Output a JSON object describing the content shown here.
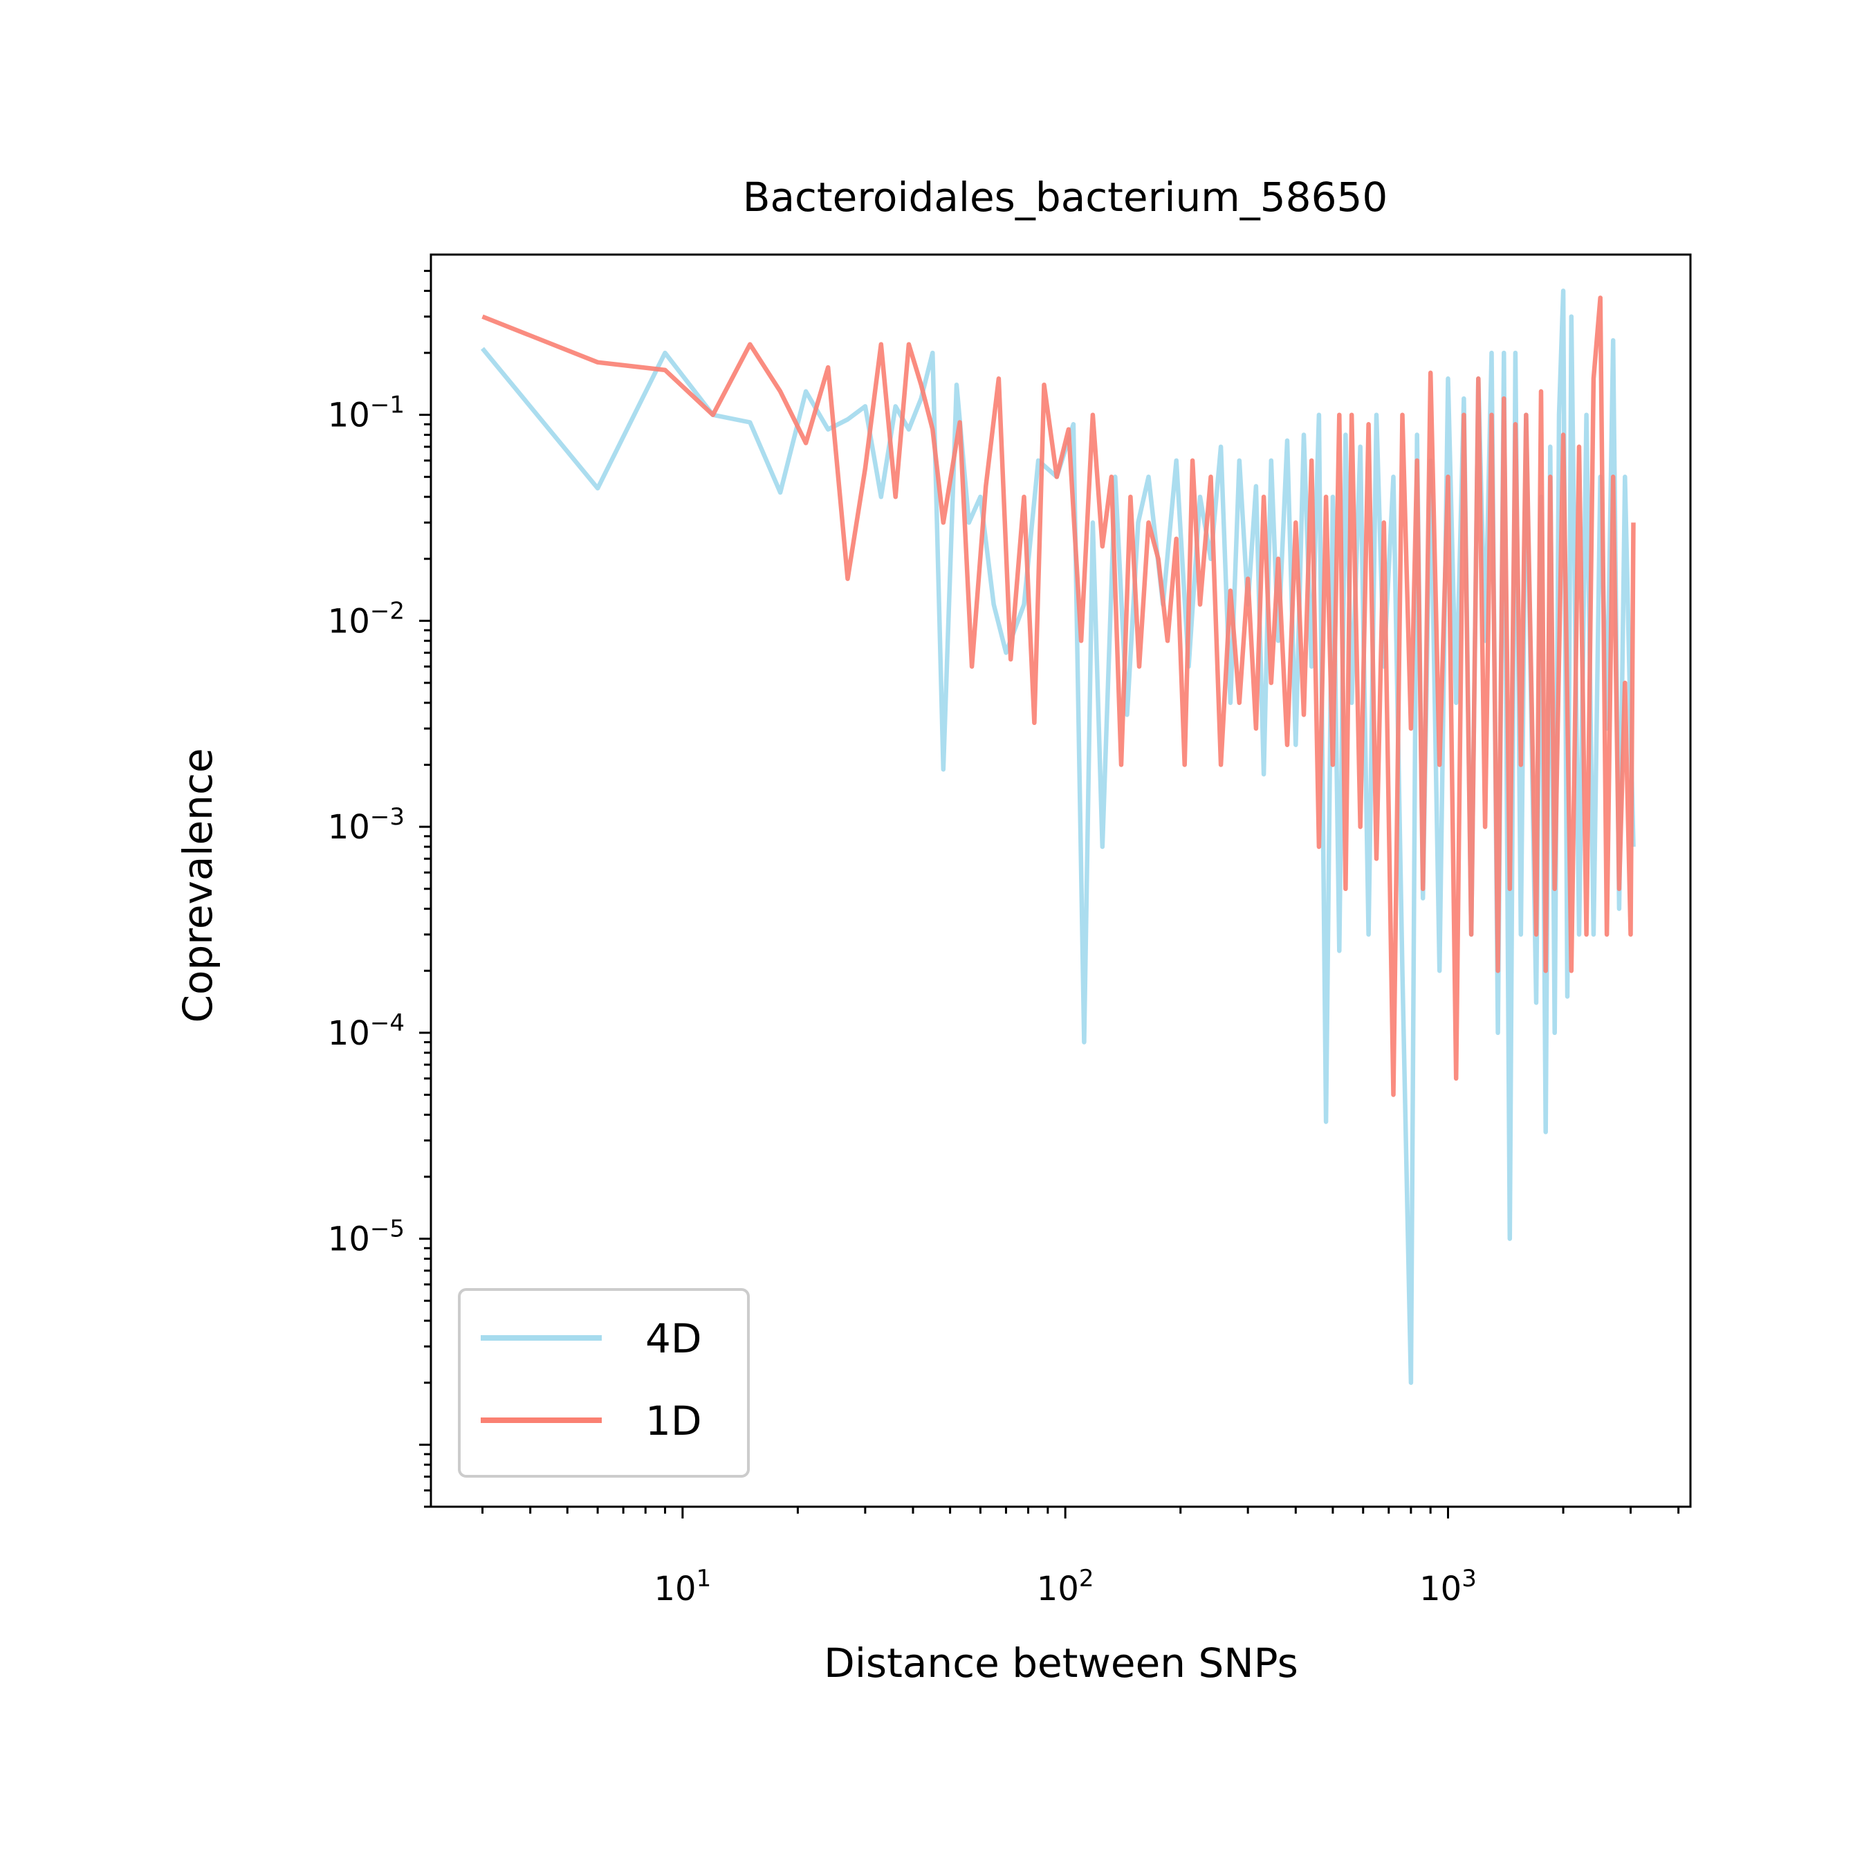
{
  "chart_data": {
    "type": "line",
    "title": "Bacteroidales_bacterium_58650",
    "xlabel": "Distance between SNPs",
    "ylabel": "Coprevalence",
    "xscale": "log",
    "yscale": "log",
    "xlim": [
      2.2,
      4300
    ],
    "ylim": [
      5e-07,
      0.6
    ],
    "grid": false,
    "legend_position": "lower-left",
    "x_ticks": [
      {
        "value": 10,
        "base": "10",
        "exp": "1"
      },
      {
        "value": 100,
        "base": "10",
        "exp": "2"
      },
      {
        "value": 1000,
        "base": "10",
        "exp": "3"
      }
    ],
    "y_ticks": [
      {
        "value": 1e-05,
        "base": "10",
        "exp": "−5"
      },
      {
        "value": 0.0001,
        "base": "10",
        "exp": "−4"
      },
      {
        "value": 0.001,
        "base": "10",
        "exp": "−3"
      },
      {
        "value": 0.01,
        "base": "10",
        "exp": "−2"
      },
      {
        "value": 0.1,
        "base": "10",
        "exp": "−1"
      }
    ],
    "series": [
      {
        "name": "4D",
        "color": "#a6dbee",
        "points": [
          [
            3,
            0.21
          ],
          [
            6,
            0.044
          ],
          [
            9,
            0.2
          ],
          [
            12,
            0.1
          ],
          [
            15,
            0.092
          ],
          [
            18,
            0.042
          ],
          [
            21,
            0.13
          ],
          [
            24,
            0.085
          ],
          [
            27,
            0.095
          ],
          [
            30,
            0.11
          ],
          [
            33,
            0.04
          ],
          [
            36,
            0.11
          ],
          [
            39,
            0.085
          ],
          [
            42,
            0.12
          ],
          [
            45,
            0.2
          ],
          [
            48,
            0.0019
          ],
          [
            52,
            0.14
          ],
          [
            56,
            0.03
          ],
          [
            60,
            0.04
          ],
          [
            65,
            0.012
          ],
          [
            70,
            0.007
          ],
          [
            78,
            0.012
          ],
          [
            85,
            0.06
          ],
          [
            95,
            0.05
          ],
          [
            105,
            0.09
          ],
          [
            112,
            9e-05
          ],
          [
            118,
            0.03
          ],
          [
            125,
            0.0008
          ],
          [
            135,
            0.05
          ],
          [
            145,
            0.0035
          ],
          [
            155,
            0.03
          ],
          [
            165,
            0.05
          ],
          [
            180,
            0.012
          ],
          [
            195,
            0.06
          ],
          [
            210,
            0.006
          ],
          [
            225,
            0.04
          ],
          [
            240,
            0.02
          ],
          [
            255,
            0.07
          ],
          [
            270,
            0.004
          ],
          [
            285,
            0.06
          ],
          [
            300,
            0.012
          ],
          [
            315,
            0.045
          ],
          [
            330,
            0.0018
          ],
          [
            345,
            0.06
          ],
          [
            360,
            0.008
          ],
          [
            380,
            0.075
          ],
          [
            400,
            0.0025
          ],
          [
            420,
            0.08
          ],
          [
            440,
            0.006
          ],
          [
            460,
            0.1
          ],
          [
            480,
            3.7e-05
          ],
          [
            500,
            0.04
          ],
          [
            520,
            0.00025
          ],
          [
            540,
            0.08
          ],
          [
            560,
            0.004
          ],
          [
            590,
            0.07
          ],
          [
            620,
            0.0003
          ],
          [
            650,
            0.1
          ],
          [
            680,
            0.006
          ],
          [
            720,
            0.05
          ],
          [
            760,
            0.0002
          ],
          [
            800,
            2e-06
          ],
          [
            830,
            0.08
          ],
          [
            860,
            0.00045
          ],
          [
            900,
            0.06
          ],
          [
            950,
            0.0002
          ],
          [
            1000,
            0.15
          ],
          [
            1050,
            0.004
          ],
          [
            1100,
            0.12
          ],
          [
            1150,
            0.0003
          ],
          [
            1200,
            0.15
          ],
          [
            1250,
            0.008
          ],
          [
            1300,
            0.2
          ],
          [
            1350,
            0.0001
          ],
          [
            1400,
            0.2
          ],
          [
            1450,
            1e-05
          ],
          [
            1500,
            0.2
          ],
          [
            1550,
            0.0003
          ],
          [
            1600,
            0.1
          ],
          [
            1700,
            0.00014
          ],
          [
            1750,
            0.04
          ],
          [
            1800,
            3.3e-05
          ],
          [
            1850,
            0.07
          ],
          [
            1900,
            0.0001
          ],
          [
            1950,
            0.1
          ],
          [
            2000,
            0.4
          ],
          [
            2050,
            0.00015
          ],
          [
            2100,
            0.3
          ],
          [
            2200,
            0.0003
          ],
          [
            2300,
            0.1
          ],
          [
            2400,
            0.0003
          ],
          [
            2500,
            0.05
          ],
          [
            2600,
            0.003
          ],
          [
            2700,
            0.23
          ],
          [
            2800,
            0.0004
          ],
          [
            2900,
            0.05
          ],
          [
            3000,
            0.003
          ],
          [
            3050,
            0.0008
          ]
        ]
      },
      {
        "name": "1D",
        "color": "#fa8072",
        "points": [
          [
            3,
            0.3
          ],
          [
            6,
            0.18
          ],
          [
            9,
            0.165
          ],
          [
            12,
            0.1
          ],
          [
            15,
            0.22
          ],
          [
            18,
            0.13
          ],
          [
            21,
            0.073
          ],
          [
            24,
            0.17
          ],
          [
            27,
            0.016
          ],
          [
            30,
            0.055
          ],
          [
            33,
            0.22
          ],
          [
            36,
            0.04
          ],
          [
            39,
            0.22
          ],
          [
            42,
            0.14
          ],
          [
            45,
            0.085
          ],
          [
            48,
            0.03
          ],
          [
            53,
            0.092
          ],
          [
            57,
            0.006
          ],
          [
            62,
            0.045
          ],
          [
            67,
            0.15
          ],
          [
            72,
            0.0065
          ],
          [
            78,
            0.04
          ],
          [
            83,
            0.0032
          ],
          [
            88,
            0.14
          ],
          [
            95,
            0.05
          ],
          [
            102,
            0.085
          ],
          [
            110,
            0.008
          ],
          [
            118,
            0.1
          ],
          [
            125,
            0.023
          ],
          [
            132,
            0.05
          ],
          [
            140,
            0.002
          ],
          [
            148,
            0.04
          ],
          [
            156,
            0.006
          ],
          [
            165,
            0.03
          ],
          [
            175,
            0.02
          ],
          [
            185,
            0.008
          ],
          [
            195,
            0.025
          ],
          [
            205,
            0.002
          ],
          [
            215,
            0.06
          ],
          [
            225,
            0.012
          ],
          [
            240,
            0.05
          ],
          [
            255,
            0.002
          ],
          [
            270,
            0.014
          ],
          [
            285,
            0.004
          ],
          [
            300,
            0.016
          ],
          [
            315,
            0.003
          ],
          [
            330,
            0.04
          ],
          [
            345,
            0.005
          ],
          [
            360,
            0.02
          ],
          [
            380,
            0.0025
          ],
          [
            400,
            0.03
          ],
          [
            420,
            0.0035
          ],
          [
            440,
            0.06
          ],
          [
            460,
            0.0008
          ],
          [
            480,
            0.04
          ],
          [
            500,
            0.002
          ],
          [
            520,
            0.1
          ],
          [
            540,
            0.0005
          ],
          [
            560,
            0.1
          ],
          [
            590,
            0.001
          ],
          [
            620,
            0.09
          ],
          [
            650,
            0.0007
          ],
          [
            680,
            0.03
          ],
          [
            720,
            5e-05
          ],
          [
            760,
            0.1
          ],
          [
            800,
            0.003
          ],
          [
            830,
            0.06
          ],
          [
            860,
            0.0005
          ],
          [
            900,
            0.16
          ],
          [
            950,
            0.002
          ],
          [
            1000,
            0.05
          ],
          [
            1050,
            6e-05
          ],
          [
            1100,
            0.1
          ],
          [
            1150,
            0.0003
          ],
          [
            1200,
            0.15
          ],
          [
            1250,
            0.001
          ],
          [
            1300,
            0.1
          ],
          [
            1350,
            0.0002
          ],
          [
            1400,
            0.12
          ],
          [
            1450,
            0.0005
          ],
          [
            1500,
            0.09
          ],
          [
            1550,
            0.002
          ],
          [
            1600,
            0.1
          ],
          [
            1700,
            0.0003
          ],
          [
            1750,
            0.13
          ],
          [
            1800,
            0.0002
          ],
          [
            1850,
            0.05
          ],
          [
            1900,
            0.0005
          ],
          [
            2000,
            0.08
          ],
          [
            2100,
            0.0002
          ],
          [
            2200,
            0.07
          ],
          [
            2300,
            0.0003
          ],
          [
            2400,
            0.15
          ],
          [
            2500,
            0.37
          ],
          [
            2600,
            0.0003
          ],
          [
            2700,
            0.05
          ],
          [
            2800,
            0.0005
          ],
          [
            2900,
            0.005
          ],
          [
            3000,
            0.0003
          ],
          [
            3050,
            0.03
          ]
        ]
      }
    ]
  }
}
